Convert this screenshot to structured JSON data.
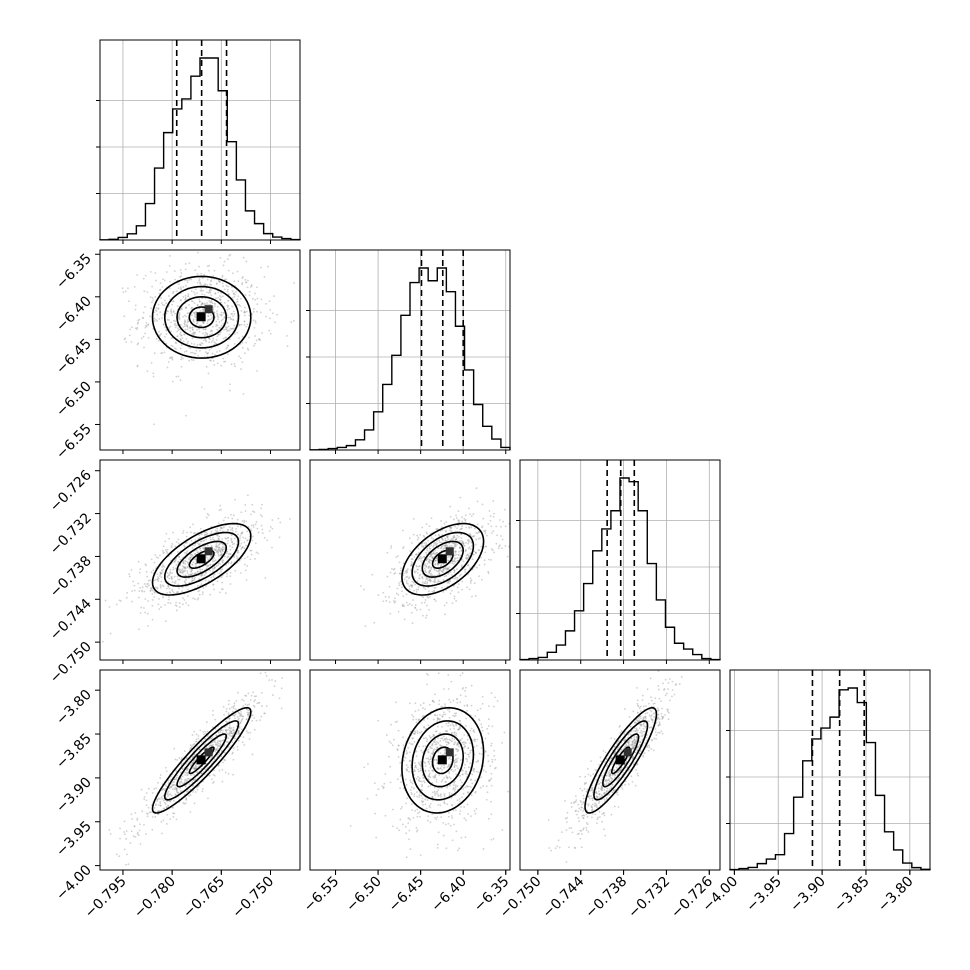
{
  "chart_data": {
    "type": "corner",
    "parameters": [
      {
        "index": 0,
        "range": [
          -0.802,
          -0.741
        ],
        "ticks": [
          -0.795,
          -0.78,
          -0.765,
          -0.75
        ],
        "tick_labels": [
          "−0.795",
          "−0.780",
          "−0.765",
          "−0.750"
        ],
        "quantiles": [
          -0.7786,
          -0.771,
          -0.7634
        ]
      },
      {
        "index": 1,
        "range": [
          -6.58,
          -6.345
        ],
        "ticks": [
          -6.55,
          -6.5,
          -6.45,
          -6.4,
          -6.35
        ],
        "tick_labels": [
          "−6.55",
          "−6.50",
          "−6.45",
          "−6.40",
          "−6.35"
        ],
        "quantiles": [
          -6.449,
          -6.424,
          -6.4
        ]
      },
      {
        "index": 2,
        "range": [
          -0.7525,
          -0.7245
        ],
        "ticks": [
          -0.75,
          -0.744,
          -0.738,
          -0.732,
          -0.726
        ],
        "tick_labels": [
          "−0.750",
          "−0.744",
          "−0.738",
          "−0.732",
          "−0.726"
        ],
        "quantiles": [
          -0.7403,
          -0.7384,
          -0.7365
        ]
      },
      {
        "index": 3,
        "range": [
          -4.005,
          -3.777
        ],
        "ticks": [
          -4.0,
          -3.95,
          -3.9,
          -3.85,
          -3.8
        ],
        "tick_labels": [
          "−4.00",
          "−3.95",
          "−3.90",
          "−3.85",
          "−3.80"
        ],
        "quantiles": [
          -3.911,
          -3.88,
          -3.852
        ]
      }
    ],
    "histograms": [
      {
        "param": 0,
        "counts": [
          1,
          4,
          14,
          34,
          78,
          200,
          395,
          590,
          720,
          775,
          900,
          1000,
          1000,
          820,
          540,
          330,
          160,
          90,
          35,
          16,
          8,
          2
        ]
      },
      {
        "param": 1,
        "counts": [
          1,
          3,
          8,
          14,
          24,
          56,
          110,
          210,
          360,
          520,
          740,
          920,
          1000,
          930,
          1000,
          870,
          680,
          440,
          250,
          130,
          60,
          14
        ]
      },
      {
        "param": 2,
        "counts": [
          2,
          8,
          14,
          42,
          82,
          160,
          270,
          420,
          600,
          720,
          820,
          1000,
          980,
          820,
          530,
          330,
          180,
          92,
          60,
          30,
          8,
          2
        ]
      },
      {
        "param": 3,
        "counts": [
          2,
          8,
          14,
          35,
          60,
          84,
          200,
          400,
          600,
          720,
          780,
          840,
          990,
          1000,
          920,
          700,
          410,
          210,
          110,
          38,
          13,
          4
        ]
      }
    ],
    "joint_panels": [
      {
        "x_param": 0,
        "y_param": 1,
        "center": [
          -0.771,
          -6.424
        ],
        "sd": [
          0.0075,
          0.024
        ],
        "rho": 0.0
      },
      {
        "x_param": 0,
        "y_param": 2,
        "center": [
          -0.771,
          -0.7384
        ],
        "sd": [
          0.0075,
          0.0025
        ],
        "rho": 0.65
      },
      {
        "x_param": 1,
        "y_param": 2,
        "center": [
          -6.424,
          -0.7384
        ],
        "sd": [
          0.024,
          0.0025
        ],
        "rho": 0.5
      },
      {
        "x_param": 0,
        "y_param": 3,
        "center": [
          -0.771,
          -3.88
        ],
        "sd": [
          0.0075,
          0.03
        ],
        "rho": 0.92
      },
      {
        "x_param": 1,
        "y_param": 3,
        "center": [
          -6.424,
          -3.88
        ],
        "sd": [
          0.024,
          0.03
        ],
        "rho": 0.15
      },
      {
        "x_param": 2,
        "y_param": 3,
        "center": [
          -0.7384,
          -3.88
        ],
        "sd": [
          0.0025,
          0.03
        ],
        "rho": 0.88
      }
    ],
    "contour_levels_sigma": [
      0.5,
      1.0,
      1.5,
      2.0
    ],
    "grid": true
  }
}
